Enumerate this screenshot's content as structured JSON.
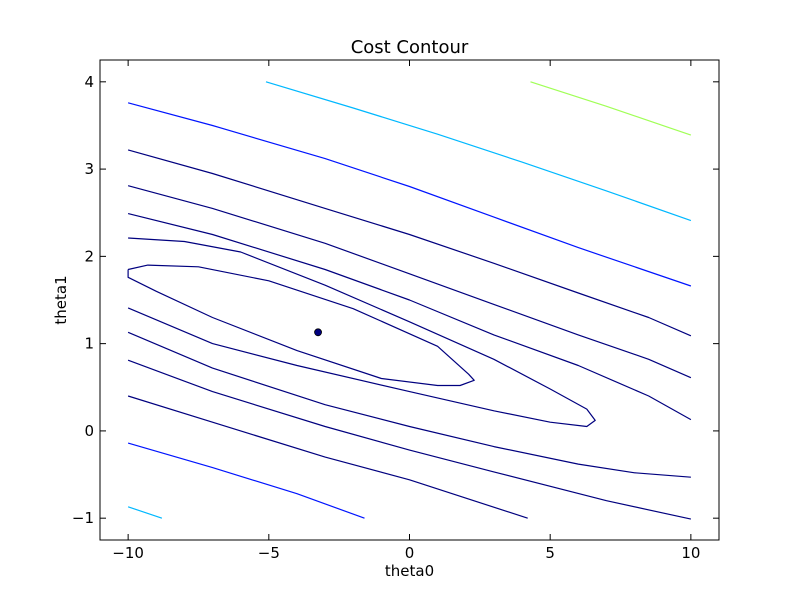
{
  "chart_data": {
    "type": "contour",
    "title": "Cost Contour",
    "xlabel": "theta0",
    "ylabel": "theta1",
    "xlim": [
      -11,
      11
    ],
    "ylim": [
      -1.25,
      4.25
    ],
    "x_ticks": [
      -10,
      -5,
      0,
      5,
      10
    ],
    "y_ticks": [
      -1,
      0,
      1,
      2,
      3,
      4
    ],
    "x_tick_labels": [
      "−10",
      "−5",
      "0",
      "5",
      "10"
    ],
    "y_tick_labels": [
      "−1",
      "0",
      "1",
      "2",
      "3",
      "4"
    ],
    "grid": false,
    "contour_range": {
      "theta0": [
        -10,
        10
      ],
      "theta1": [
        -1,
        4
      ]
    },
    "minimum_point": {
      "theta0": -3.25,
      "theta1": 1.13,
      "color": "#00007f"
    },
    "contours": [
      {
        "color": "#00007f",
        "points": [
          [
            -10,
            1.85
          ],
          [
            -9.3,
            1.9
          ],
          [
            -7.5,
            1.88
          ],
          [
            -5,
            1.72
          ],
          [
            -2,
            1.4
          ],
          [
            1,
            0.97
          ],
          [
            2.1,
            0.65
          ],
          [
            2.3,
            0.58
          ],
          [
            1.8,
            0.52
          ],
          [
            1,
            0.52
          ],
          [
            -1,
            0.6
          ],
          [
            -4,
            0.92
          ],
          [
            -7,
            1.3
          ],
          [
            -9,
            1.6
          ],
          [
            -10,
            1.76
          ],
          [
            -10,
            1.85
          ]
        ]
      },
      {
        "color": "#00007f",
        "points": [
          [
            -10,
            1.41
          ],
          [
            -7,
            1.0
          ],
          [
            -4,
            0.75
          ],
          [
            0,
            0.45
          ],
          [
            3,
            0.23
          ],
          [
            5,
            0.1
          ],
          [
            6.3,
            0.05
          ],
          [
            6.6,
            0.12
          ],
          [
            6.3,
            0.25
          ],
          [
            5,
            0.48
          ],
          [
            3,
            0.82
          ],
          [
            0,
            1.25
          ],
          [
            -3,
            1.67
          ],
          [
            -6,
            2.05
          ],
          [
            -8,
            2.17
          ],
          [
            -10,
            2.21
          ]
        ]
      },
      {
        "color": "#00007f",
        "points": [
          [
            -10,
            1.13
          ],
          [
            -7,
            0.72
          ],
          [
            -3,
            0.3
          ],
          [
            0,
            0.05
          ],
          [
            3,
            -0.18
          ],
          [
            6,
            -0.38
          ],
          [
            8,
            -0.48
          ],
          [
            10,
            -0.53
          ]
        ]
      },
      {
        "color": "#00007f",
        "points": [
          [
            -10,
            0.81
          ],
          [
            -7,
            0.45
          ],
          [
            -3,
            0.05
          ],
          [
            0,
            -0.22
          ],
          [
            3,
            -0.47
          ],
          [
            7,
            -0.8
          ],
          [
            10,
            -1.01
          ]
        ]
      },
      {
        "color": "#00007f",
        "points": [
          [
            -10,
            0.4
          ],
          [
            -7,
            0.1
          ],
          [
            -3,
            -0.3
          ],
          [
            0,
            -0.56
          ],
          [
            4.2,
            -1.0
          ]
        ]
      },
      {
        "color": "#00007f",
        "points": [
          [
            -10,
            2.49
          ],
          [
            -7,
            2.25
          ],
          [
            -3,
            1.85
          ],
          [
            0,
            1.5
          ],
          [
            3,
            1.1
          ],
          [
            6,
            0.75
          ],
          [
            8.5,
            0.4
          ],
          [
            10,
            0.13
          ]
        ]
      },
      {
        "color": "#00007f",
        "points": [
          [
            -10,
            2.81
          ],
          [
            -7,
            2.55
          ],
          [
            -3,
            2.15
          ],
          [
            0,
            1.8
          ],
          [
            3,
            1.45
          ],
          [
            6,
            1.1
          ],
          [
            8.5,
            0.82
          ],
          [
            10,
            0.61
          ]
        ]
      },
      {
        "color": "#00007f",
        "points": [
          [
            -10,
            3.22
          ],
          [
            -7,
            2.95
          ],
          [
            -3,
            2.55
          ],
          [
            0,
            2.25
          ],
          [
            3,
            1.92
          ],
          [
            6,
            1.58
          ],
          [
            8.5,
            1.3
          ],
          [
            10,
            1.09
          ]
        ]
      },
      {
        "color": "#0014ff",
        "points": [
          [
            -10,
            3.76
          ],
          [
            -7,
            3.5
          ],
          [
            -3,
            3.12
          ],
          [
            0,
            2.8
          ],
          [
            3,
            2.45
          ],
          [
            6,
            2.1
          ],
          [
            10,
            1.66
          ]
        ]
      },
      {
        "color": "#0014ff",
        "points": [
          [
            -10,
            -0.14
          ],
          [
            -7,
            -0.42
          ],
          [
            -4,
            -0.72
          ],
          [
            -1.6,
            -1.0
          ]
        ]
      },
      {
        "color": "#00b8ff",
        "points": [
          [
            -5.1,
            4.0
          ],
          [
            -2,
            3.7
          ],
          [
            1,
            3.4
          ],
          [
            4,
            3.08
          ],
          [
            7,
            2.75
          ],
          [
            10,
            2.41
          ]
        ]
      },
      {
        "color": "#00b8ff",
        "points": [
          [
            -10,
            -0.87
          ],
          [
            -8.8,
            -1.0
          ]
        ]
      },
      {
        "color": "#a0ff56",
        "points": [
          [
            4.3,
            4.0
          ],
          [
            7,
            3.72
          ],
          [
            10,
            3.39
          ]
        ]
      }
    ]
  }
}
